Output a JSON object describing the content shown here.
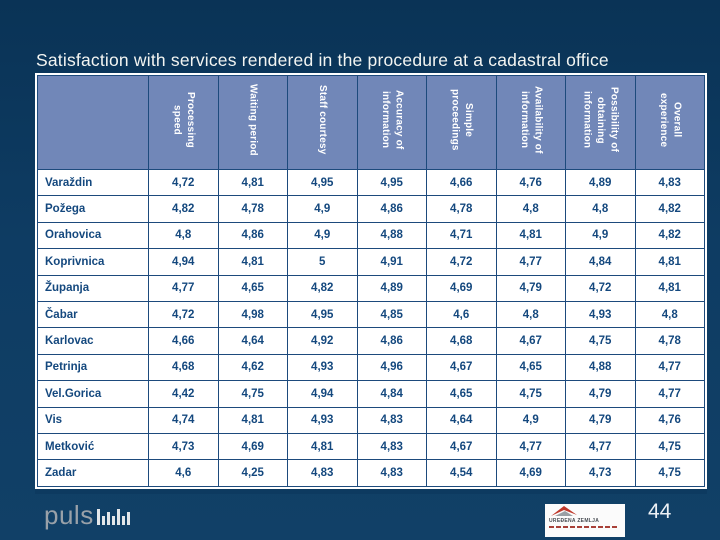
{
  "slide": {
    "title": "Satisfaction with services rendered in the procedure at a cadastral office",
    "page_number": "44"
  },
  "theme": {
    "background_color": "#0e3c63",
    "header_cell_color": "#7187b8",
    "cell_border_color": "#1d4a7c",
    "value_text_color": "#14487e",
    "title_text_color": "#f3f5f2"
  },
  "table": {
    "corner_label": "",
    "columns": [
      "Processing\nspeed",
      "Waiting period",
      "Staff courtesy",
      "Accuracy of\ninformation",
      "Simple\nproceedings",
      "Availability of\ninformation",
      "Possibility of\nobtaining\ninformation",
      "Overall\nexperience"
    ],
    "rows": [
      {
        "label": "Varaždin",
        "values": [
          "4,72",
          "4,81",
          "4,95",
          "4,95",
          "4,66",
          "4,76",
          "4,89",
          "4,83"
        ]
      },
      {
        "label": "Požega",
        "values": [
          "4,82",
          "4,78",
          "4,9",
          "4,86",
          "4,78",
          "4,8",
          "4,8",
          "4,82"
        ]
      },
      {
        "label": "Orahovica",
        "values": [
          "4,8",
          "4,86",
          "4,9",
          "4,88",
          "4,71",
          "4,81",
          "4,9",
          "4,82"
        ]
      },
      {
        "label": "Koprivnica",
        "values": [
          "4,94",
          "4,81",
          "5",
          "4,91",
          "4,72",
          "4,77",
          "4,84",
          "4,81"
        ]
      },
      {
        "label": "Županja",
        "values": [
          "4,77",
          "4,65",
          "4,82",
          "4,89",
          "4,69",
          "4,79",
          "4,72",
          "4,81"
        ]
      },
      {
        "label": "Čabar",
        "values": [
          "4,72",
          "4,98",
          "4,95",
          "4,85",
          "4,6",
          "4,8",
          "4,93",
          "4,8"
        ]
      },
      {
        "label": "Karlovac",
        "values": [
          "4,66",
          "4,64",
          "4,92",
          "4,86",
          "4,68",
          "4,67",
          "4,75",
          "4,78"
        ]
      },
      {
        "label": "Petrinja",
        "values": [
          "4,68",
          "4,62",
          "4,93",
          "4,96",
          "4,67",
          "4,65",
          "4,88",
          "4,77"
        ]
      },
      {
        "label": "Vel.Gorica",
        "values": [
          "4,42",
          "4,75",
          "4,94",
          "4,84",
          "4,65",
          "4,75",
          "4,79",
          "4,77"
        ]
      },
      {
        "label": "Vis",
        "values": [
          "4,74",
          "4,81",
          "4,93",
          "4,83",
          "4,64",
          "4,9",
          "4,79",
          "4,76"
        ]
      },
      {
        "label": "Metković",
        "values": [
          "4,73",
          "4,69",
          "4,81",
          "4,83",
          "4,67",
          "4,77",
          "4,77",
          "4,75"
        ]
      },
      {
        "label": "Zadar",
        "values": [
          "4,6",
          "4,25",
          "4,83",
          "4,83",
          "4,54",
          "4,69",
          "4,73",
          "4,75"
        ]
      }
    ]
  },
  "footer": {
    "brand": "puls",
    "partner_logo_text": "UREĐENA ZEMLJA"
  },
  "chart_data": {
    "type": "table",
    "title": "Satisfaction with services rendered in the procedure at a cadastral office",
    "columns": [
      "Processing speed",
      "Waiting period",
      "Staff courtesy",
      "Accuracy of information",
      "Simple proceedings",
      "Availability of information",
      "Possibility of obtaining information",
      "Overall experience"
    ],
    "row_labels": [
      "Varaždin",
      "Požega",
      "Orahovica",
      "Koprivnica",
      "Županja",
      "Čabar",
      "Karlovac",
      "Petrinja",
      "Vel.Gorica",
      "Vis",
      "Metković",
      "Zadar"
    ],
    "values": [
      [
        4.72,
        4.81,
        4.95,
        4.95,
        4.66,
        4.76,
        4.89,
        4.83
      ],
      [
        4.82,
        4.78,
        4.9,
        4.86,
        4.78,
        4.8,
        4.8,
        4.82
      ],
      [
        4.8,
        4.86,
        4.9,
        4.88,
        4.71,
        4.81,
        4.9,
        4.82
      ],
      [
        4.94,
        4.81,
        5,
        4.91,
        4.72,
        4.77,
        4.84,
        4.81
      ],
      [
        4.77,
        4.65,
        4.82,
        4.89,
        4.69,
        4.79,
        4.72,
        4.81
      ],
      [
        4.72,
        4.98,
        4.95,
        4.85,
        4.6,
        4.8,
        4.93,
        4.8
      ],
      [
        4.66,
        4.64,
        4.92,
        4.86,
        4.68,
        4.67,
        4.75,
        4.78
      ],
      [
        4.68,
        4.62,
        4.93,
        4.96,
        4.67,
        4.65,
        4.88,
        4.77
      ],
      [
        4.42,
        4.75,
        4.94,
        4.84,
        4.65,
        4.75,
        4.79,
        4.77
      ],
      [
        4.74,
        4.81,
        4.93,
        4.83,
        4.64,
        4.9,
        4.79,
        4.76
      ],
      [
        4.73,
        4.69,
        4.81,
        4.83,
        4.67,
        4.77,
        4.77,
        4.75
      ],
      [
        4.6,
        4.25,
        4.83,
        4.83,
        4.54,
        4.69,
        4.73,
        4.75
      ]
    ],
    "decimal_separator": ",",
    "value_scale_max": 5
  }
}
